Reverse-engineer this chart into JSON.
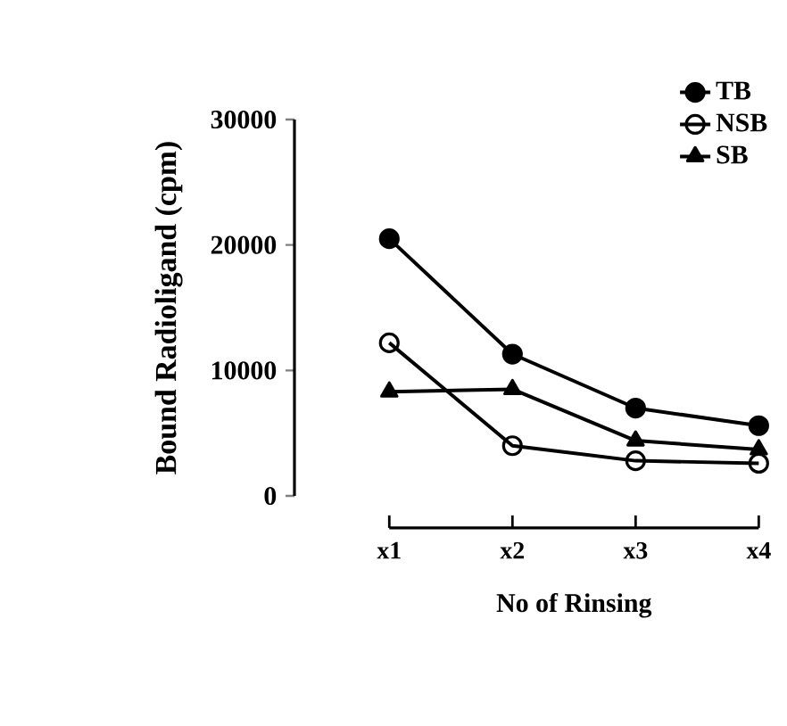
{
  "chart_data": {
    "type": "line",
    "xlabel": "No of Rinsing",
    "ylabel": "Bound Radioligand (cpm)",
    "categories": [
      "x1",
      "x2",
      "x3",
      "x4"
    ],
    "series": [
      {
        "name": "TB",
        "color": "#000000",
        "marker": "circle",
        "values": [
          20500,
          11300,
          7000,
          5600
        ]
      },
      {
        "name": "NSB",
        "color": "#000000",
        "marker": "open circle",
        "values": [
          12200,
          4000,
          2800,
          2600
        ]
      },
      {
        "name": "SB",
        "color": "#000000",
        "marker": "triangle",
        "values": [
          8300,
          8500,
          4400,
          3700
        ]
      }
    ],
    "ylim": [
      0,
      30000
    ],
    "yticks": [
      0,
      10000,
      20000,
      30000
    ],
    "legend": "top right",
    "grid": false,
    "line_style": "solid"
  }
}
